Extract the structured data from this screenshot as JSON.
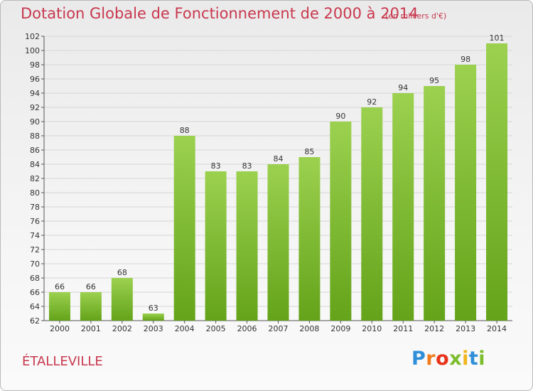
{
  "chart_data": {
    "type": "bar",
    "title": "Dotation Globale de Fonctionnement de 2000 à 2014",
    "unit_note": "(en milliers d'€)",
    "categories": [
      "2000",
      "2001",
      "2002",
      "2003",
      "2004",
      "2005",
      "2006",
      "2007",
      "2008",
      "2009",
      "2010",
      "2011",
      "2012",
      "2013",
      "2014"
    ],
    "values": [
      66,
      66,
      68,
      63,
      88,
      83,
      83,
      84,
      85,
      90,
      92,
      94,
      95,
      98,
      101
    ],
    "ylim": [
      62,
      102
    ],
    "ytick_step": 2,
    "grid": true,
    "legend": "none",
    "bar_color_top": "#9bd14f",
    "bar_color_bottom": "#64a31a"
  },
  "footer": {
    "commune": "ÉTALLEVILLE",
    "brand": "Proxiti",
    "brand_colors": [
      "#2f8fd8",
      "#f07c1c",
      "#e8331a",
      "#7cbd2c",
      "#f1b51b",
      "#2f8fd8",
      "#7cbd2c"
    ]
  }
}
